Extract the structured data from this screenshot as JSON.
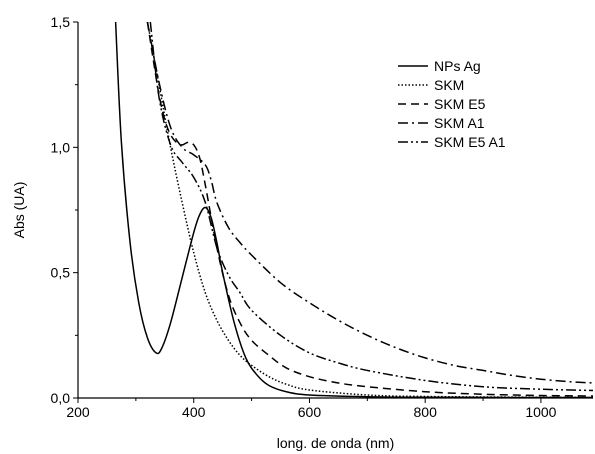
{
  "chart_data": {
    "type": "line",
    "title": "",
    "xlabel": "long. de onda (nm)",
    "ylabel": "Abs (UA)",
    "xlim": [
      200,
      1090
    ],
    "ylim": [
      0,
      1.5
    ],
    "x_ticks": [
      200,
      400,
      600,
      800,
      1000
    ],
    "x_tick_labels": [
      "200",
      "400",
      "600",
      "800",
      "1000"
    ],
    "y_ticks": [
      0,
      0.5,
      1.0,
      1.5
    ],
    "y_tick_labels": [
      "0,0",
      "0,5",
      "1,0",
      "1,5"
    ],
    "grid": false,
    "legend_position": "top-right",
    "series": [
      {
        "name": "NPs Ag",
        "dash": "solid",
        "x": [
          265,
          275,
          290,
          305,
          320,
          335,
          345,
          360,
          380,
          400,
          410,
          420,
          430,
          440,
          450,
          470,
          490,
          510,
          530,
          560,
          600,
          700,
          800,
          1000,
          1090
        ],
        "y": [
          1.5,
          1.02,
          0.62,
          0.38,
          0.24,
          0.18,
          0.2,
          0.3,
          0.48,
          0.66,
          0.73,
          0.76,
          0.72,
          0.62,
          0.5,
          0.3,
          0.16,
          0.09,
          0.05,
          0.025,
          0.012,
          0.005,
          0.003,
          0.002,
          0.002
        ]
      },
      {
        "name": "SKM",
        "dash": "dotted",
        "x": [
          320,
          340,
          360,
          380,
          400,
          420,
          440,
          460,
          480,
          500,
          530,
          560,
          600,
          700,
          800,
          1000,
          1090
        ],
        "y": [
          1.5,
          1.25,
          1.0,
          0.78,
          0.58,
          0.42,
          0.31,
          0.23,
          0.17,
          0.13,
          0.085,
          0.055,
          0.032,
          0.012,
          0.006,
          0.003,
          0.002
        ]
      },
      {
        "name": "SKM E5",
        "dash": "dashed",
        "x": [
          320,
          330,
          340,
          350,
          360,
          370,
          380,
          390,
          400,
          410,
          420,
          440,
          460,
          480,
          500,
          530,
          560,
          600,
          650,
          700,
          800,
          900,
          1000,
          1090
        ],
        "y": [
          1.5,
          1.35,
          1.21,
          1.11,
          1.05,
          1.02,
          1.01,
          1.02,
          1.01,
          0.96,
          0.85,
          0.6,
          0.41,
          0.3,
          0.23,
          0.17,
          0.12,
          0.085,
          0.06,
          0.045,
          0.025,
          0.015,
          0.01,
          0.008
        ]
      },
      {
        "name": "SKM A1",
        "dash": "dashdot",
        "x": [
          320,
          340,
          360,
          380,
          400,
          420,
          430,
          440,
          460,
          480,
          500,
          550,
          600,
          650,
          700,
          750,
          800,
          850,
          900,
          950,
          1000,
          1050,
          1090
        ],
        "y": [
          1.5,
          1.26,
          1.08,
          1.0,
          0.97,
          0.93,
          0.87,
          0.78,
          0.68,
          0.62,
          0.57,
          0.46,
          0.38,
          0.31,
          0.25,
          0.2,
          0.16,
          0.13,
          0.11,
          0.09,
          0.075,
          0.065,
          0.06
        ]
      },
      {
        "name": "SKM E5 A1",
        "dash": "dashdotdot",
        "x": [
          325,
          340,
          360,
          380,
          400,
          420,
          440,
          460,
          480,
          500,
          550,
          600,
          650,
          700,
          800,
          900,
          1000,
          1090
        ],
        "y": [
          1.5,
          1.2,
          1.01,
          0.94,
          0.88,
          0.78,
          0.6,
          0.49,
          0.42,
          0.35,
          0.25,
          0.18,
          0.14,
          0.11,
          0.07,
          0.045,
          0.035,
          0.03
        ]
      }
    ]
  }
}
